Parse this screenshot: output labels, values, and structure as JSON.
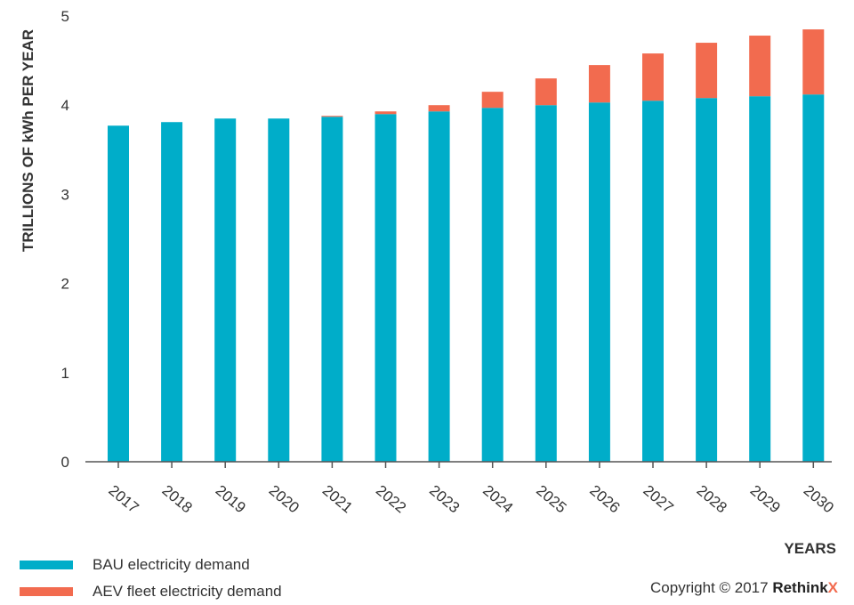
{
  "chart_data": {
    "type": "bar",
    "stacked": true,
    "categories": [
      "2017",
      "2018",
      "2019",
      "2020",
      "2021",
      "2022",
      "2023",
      "2024",
      "2025",
      "2026",
      "2027",
      "2028",
      "2029",
      "2030"
    ],
    "series": [
      {
        "name": "BAU electricity demand",
        "color": "#00adc9",
        "values": [
          3.77,
          3.81,
          3.85,
          3.85,
          3.87,
          3.9,
          3.93,
          3.97,
          4.0,
          4.03,
          4.05,
          4.08,
          4.1,
          4.12
        ]
      },
      {
        "name": "AEV fleet electricity demand",
        "color": "#f26b4f",
        "values": [
          0,
          0,
          0,
          0,
          0.01,
          0.03,
          0.07,
          0.18,
          0.3,
          0.42,
          0.53,
          0.62,
          0.68,
          0.73
        ]
      }
    ],
    "ylabel": "TRILLIONS OF kWh PER YEAR",
    "xlabel": "YEARS",
    "ylim": [
      0,
      5
    ],
    "yticks": [
      0,
      1,
      2,
      3,
      4,
      5
    ],
    "grid": false,
    "legend_position": "bottom-left"
  },
  "copyright": {
    "prefix": "Copyright © 2017 ",
    "brand": "Rethink",
    "brand_x": "X"
  }
}
